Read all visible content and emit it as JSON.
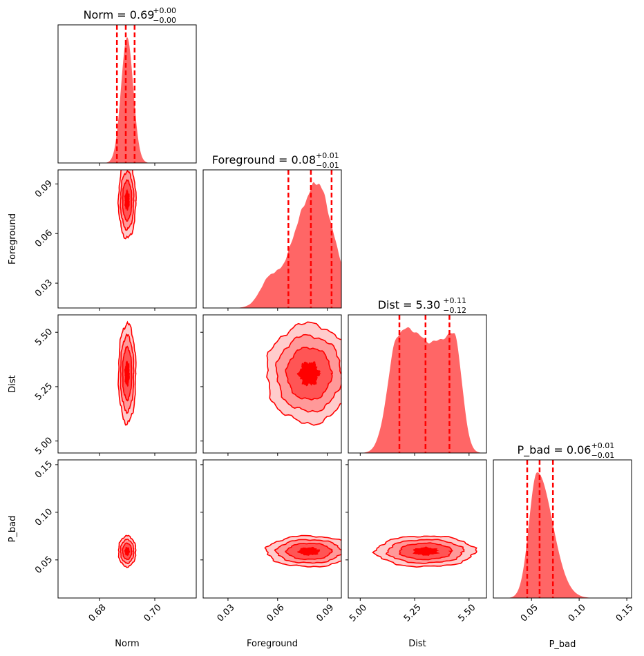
{
  "chart_data": {
    "type": "corner",
    "colors": {
      "main": "#ff0000",
      "hist_fill": "#ff6666",
      "contour_fills": [
        "#ffcccc",
        "#ff9999",
        "#ff5555",
        "#ff0000"
      ]
    },
    "parameters": [
      {
        "name": "Norm",
        "median": 0.69,
        "plus": 0.0,
        "minus": 0.0,
        "title": "Norm = 0.69",
        "plus_label": "+0.00",
        "minus_label": "−0.00",
        "range": [
          0.665,
          0.715
        ],
        "ticks": [
          0.68,
          0.7
        ],
        "tick_labels": [
          "0.68",
          "0.70"
        ],
        "quantiles": [
          0.6863,
          0.6895,
          0.6927
        ],
        "hist_shape": "gauss",
        "sigma": 0.0022
      },
      {
        "name": "Foreground",
        "median": 0.08,
        "plus": 0.01,
        "minus": 0.01,
        "title": "Foreground = 0.08",
        "plus_label": "+0.01",
        "minus_label": "−0.01",
        "range": [
          0.015,
          0.0985
        ],
        "ticks": [
          0.03,
          0.06,
          0.09
        ],
        "tick_labels": [
          "0.03",
          "0.06",
          "0.09"
        ],
        "quantiles": [
          0.0665,
          0.0801,
          0.0926
        ],
        "hist_shape": "skew"
      },
      {
        "name": "Dist",
        "median": 5.3,
        "plus": 0.11,
        "minus": 0.12,
        "title": "Dist = 5.30",
        "plus_label": "+0.11",
        "minus_label": "−0.12",
        "range": [
          4.945,
          5.58
        ],
        "ticks": [
          5.0,
          5.25,
          5.5
        ],
        "tick_labels": [
          "5.00",
          "5.25",
          "5.50"
        ],
        "quantiles": [
          5.18,
          5.3,
          5.41
        ],
        "hist_shape": "plateau"
      },
      {
        "name": "P_bad",
        "median": 0.06,
        "plus": 0.01,
        "minus": 0.01,
        "title": "P_bad = 0.06",
        "plus_label": "+0.01",
        "minus_label": "−0.01",
        "range": [
          0.01,
          0.155
        ],
        "ticks": [
          0.05,
          0.1,
          0.15
        ],
        "tick_labels": [
          "0.05",
          "0.10",
          "0.15"
        ],
        "quantiles": [
          0.0455,
          0.0585,
          0.0725
        ],
        "hist_shape": "skewright"
      }
    ],
    "x_labels": [
      "Norm",
      "Foreground",
      "Dist",
      "P_bad"
    ],
    "y_labels": [
      "Foreground",
      "Dist",
      "P_bad"
    ],
    "contour_levels": 4,
    "grid": false
  }
}
